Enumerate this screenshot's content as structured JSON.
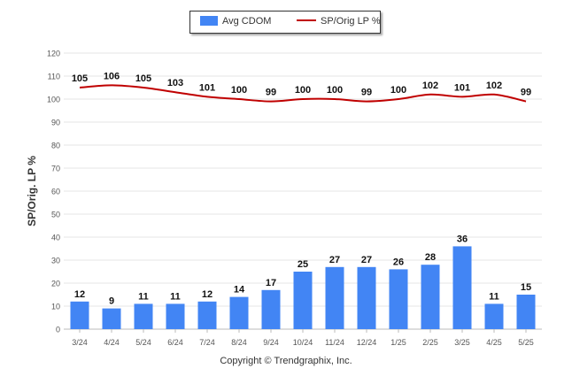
{
  "chart_data": {
    "type": "bar",
    "categories": [
      "3/24",
      "4/24",
      "5/24",
      "6/24",
      "7/24",
      "8/24",
      "9/24",
      "10/24",
      "11/24",
      "12/24",
      "1/25",
      "2/25",
      "3/25",
      "4/25",
      "5/25"
    ],
    "series": [
      {
        "name": "Avg CDOM",
        "type": "bar",
        "color": "#4285f4",
        "values": [
          12,
          9,
          11,
          11,
          12,
          14,
          17,
          25,
          27,
          27,
          26,
          28,
          36,
          11,
          15
        ]
      },
      {
        "name": "SP/Orig LP %",
        "type": "line",
        "color": "#c00000",
        "values": [
          105,
          106,
          105,
          103,
          101,
          100,
          99,
          100,
          100,
          99,
          100,
          102,
          101,
          102,
          99
        ]
      }
    ],
    "ylabel": "SP/Orig. LP %",
    "ylim": [
      0,
      120
    ],
    "yticks": [
      0,
      10,
      20,
      30,
      40,
      50,
      60,
      70,
      80,
      90,
      100,
      110,
      120
    ],
    "grid": true,
    "legend_position": "top-center"
  },
  "legend": {
    "bar_label": "Avg CDOM",
    "line_label": "SP/Orig LP %"
  },
  "footer": {
    "copyright": "Copyright © Trendgraphix, Inc."
  }
}
